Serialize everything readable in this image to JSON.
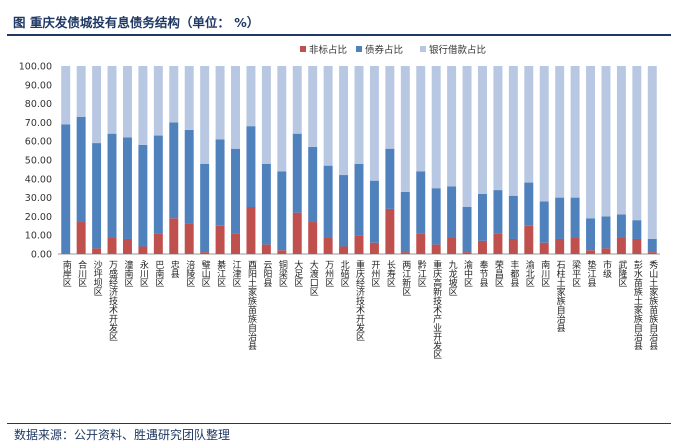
{
  "title": "图  重庆发债城投有息债务结构（单位： %）",
  "source": "数据来源：公开资料、胜遇研究团队整理",
  "colors": {
    "nonstandard": "#c0504d",
    "bond": "#4f81bd",
    "bank": "#b8c7e2",
    "title": "#1f3864"
  },
  "chart_data": {
    "type": "bar",
    "stacked": true,
    "ylim": [
      0,
      100
    ],
    "yticks": [
      "0.00",
      "10.00",
      "20.00",
      "30.00",
      "40.00",
      "50.00",
      "60.00",
      "70.00",
      "80.00",
      "90.00",
      "100.00"
    ],
    "legend_position": "top",
    "categories": [
      "南岸区",
      "合川区",
      "沙坪坝区",
      "万盛经济技术开发区",
      "潼南区",
      "永川区",
      "巴南区",
      "忠县",
      "涪陵区",
      "璧山区",
      "綦江区",
      "江津区",
      "酉阳土家族苗族自治县",
      "云阳县",
      "铜梁区",
      "大足区",
      "大渡口区",
      "万州区",
      "北碚区",
      "重庆经济技术开发区",
      "开州区",
      "长寿区",
      "两江新区",
      "黔江区",
      "重庆高新技术产业开发区",
      "九龙坡区",
      "渝中区",
      "奉节县",
      "荣昌区",
      "丰都县",
      "渝北区",
      "南川区",
      "石柱土家族自治县",
      "梁平区",
      "垫江县",
      "市级",
      "武隆区",
      "彭水苗族土家族自治县",
      "秀山土家族苗族自治县"
    ],
    "series": [
      {
        "name": "非标占比",
        "values": [
          0,
          17,
          3,
          9,
          8,
          4,
          11,
          19,
          16,
          1,
          15,
          11,
          25,
          5,
          2,
          22,
          17,
          9,
          4,
          10,
          6,
          24,
          1,
          11,
          5,
          9,
          1,
          7,
          11,
          8,
          15,
          6,
          8,
          9,
          2,
          3,
          9,
          8,
          1
        ]
      },
      {
        "name": "债券占比",
        "values": [
          69,
          56,
          56,
          55,
          54,
          54,
          52,
          51,
          50,
          47,
          46,
          45,
          43,
          43,
          42,
          42,
          40,
          38,
          38,
          38,
          33,
          32,
          32,
          33,
          30,
          27,
          24,
          25,
          23,
          23,
          23,
          22,
          22,
          21,
          17,
          17,
          12,
          10,
          7
        ]
      },
      {
        "name": "银行借款占比",
        "values": [
          31,
          27,
          41,
          36,
          38,
          42,
          37,
          30,
          34,
          52,
          39,
          44,
          32,
          52,
          56,
          36,
          43,
          53,
          58,
          52,
          61,
          44,
          67,
          56,
          65,
          64,
          75,
          68,
          66,
          69,
          62,
          72,
          70,
          70,
          81,
          80,
          79,
          82,
          92
        ]
      }
    ]
  }
}
